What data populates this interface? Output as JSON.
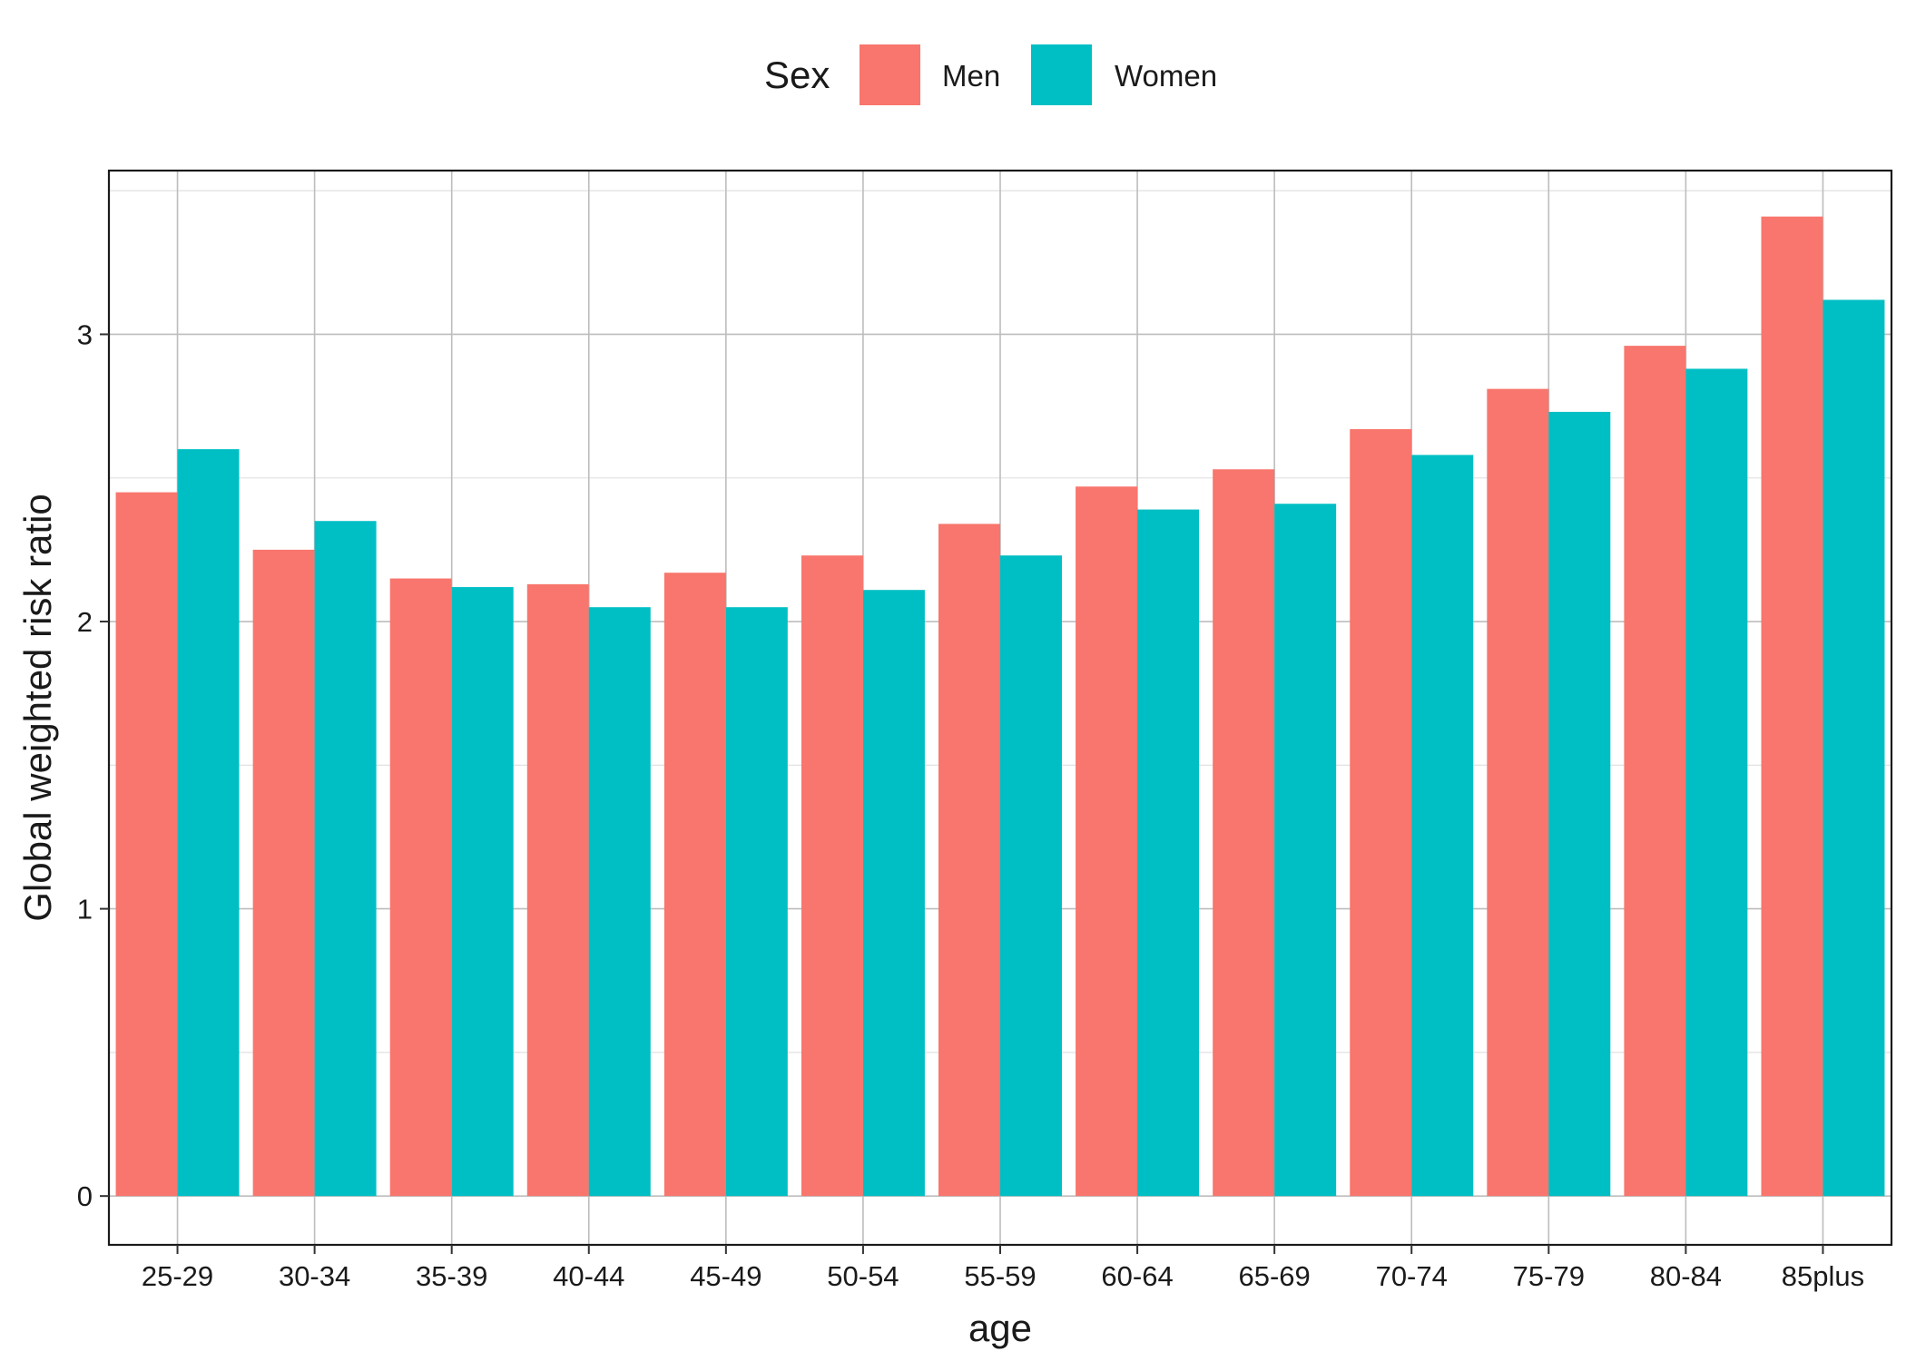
{
  "chart_data": {
    "type": "bar",
    "xlabel": "age",
    "ylabel": "Global weighted risk ratio",
    "categories": [
      "25-29",
      "30-34",
      "35-39",
      "40-44",
      "45-49",
      "50-54",
      "55-59",
      "60-64",
      "65-69",
      "70-74",
      "75-79",
      "80-84",
      "85plus"
    ],
    "series": [
      {
        "name": "Men",
        "color": "#F8766D",
        "values": [
          2.45,
          2.25,
          2.15,
          2.13,
          2.17,
          2.23,
          2.34,
          2.47,
          2.53,
          2.67,
          2.81,
          2.96,
          3.41
        ]
      },
      {
        "name": "Women",
        "color": "#00BFC4",
        "values": [
          2.6,
          2.35,
          2.12,
          2.05,
          2.05,
          2.11,
          2.23,
          2.39,
          2.41,
          2.58,
          2.73,
          2.88,
          3.12
        ]
      }
    ],
    "ylim": [
      -0.17,
      3.57
    ],
    "yticks": [
      0,
      1,
      2,
      3
    ],
    "grid": true,
    "legend": {
      "title": "Sex",
      "position": "top"
    }
  }
}
